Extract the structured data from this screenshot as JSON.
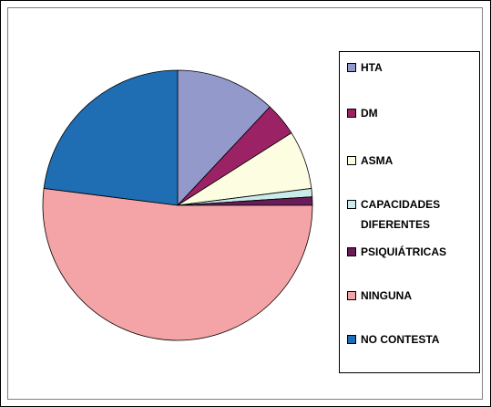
{
  "chart_data": {
    "type": "pie",
    "categories": [
      "HTA",
      "DM",
      "ASMA",
      "CAPACIDADES DIFERENTES",
      "PSIQUIÁTRICAS",
      "NINGUNA",
      "NO CONTESTA"
    ],
    "values": [
      12,
      4,
      7,
      1,
      1,
      52,
      23
    ],
    "colors": [
      "#9499cc",
      "#9c2266",
      "#fdfde2",
      "#c9ecea",
      "#6a1c58",
      "#f4a4a6",
      "#1f6db3"
    ],
    "legend": "right"
  }
}
